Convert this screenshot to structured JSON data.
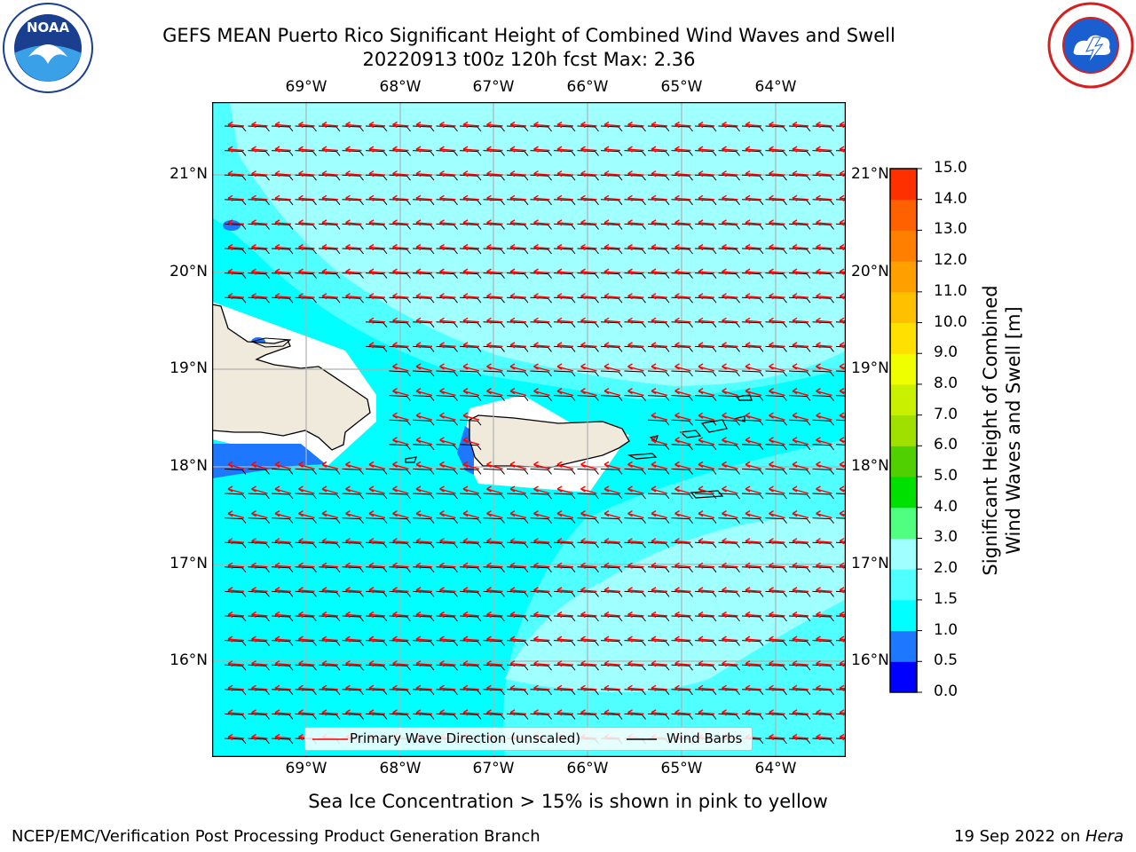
{
  "title": {
    "line1": "GEFS MEAN Puerto Rico Significant Height of Combined Wind Waves and Swell",
    "line2": "20220913 t00z 120h fcst   Max: 2.36"
  },
  "logos": {
    "left": "noaa-logo-icon",
    "right": "nws-logo-icon"
  },
  "axes": {
    "lon_labels": [
      "69°W",
      "68°W",
      "67°W",
      "66°W",
      "65°W",
      "64°W"
    ],
    "lat_labels": [
      "21°N",
      "20°N",
      "19°N",
      "18°N",
      "17°N",
      "16°N"
    ]
  },
  "legend": {
    "wave": "Primary Wave Direction (unscaled)",
    "barb": "Wind Barbs",
    "wave_color": "#ff0000",
    "barb_color": "#000000"
  },
  "colorbar": {
    "label_line1": "Significant Height of Combined",
    "label_line2": "Wind Waves and Swell [m]",
    "ticks": [
      "0.0",
      "0.5",
      "1.0",
      "1.5",
      "2.0",
      "3.0",
      "4.0",
      "5.0",
      "6.0",
      "7.0",
      "8.0",
      "9.0",
      "10.0",
      "11.0",
      "12.0",
      "13.0",
      "14.0",
      "15.0"
    ],
    "colors": [
      "#0000ff",
      "#1e78ff",
      "#00ffff",
      "#50ffff",
      "#a0ffff",
      "#50ff80",
      "#00e000",
      "#50d000",
      "#a0e000",
      "#c8f000",
      "#f0ff00",
      "#ffe000",
      "#ffc000",
      "#ffa000",
      "#ff8000",
      "#ff6000",
      "#ff3000"
    ]
  },
  "footer": {
    "ice_note": "Sea Ice Concentration > 15% is shown in pink to yellow",
    "branch": "NCEP/EMC/Verification Post Processing Product Generation Branch",
    "date_prefix": "19 Sep 2022 on ",
    "machine": "Hera"
  },
  "map_colors": {
    "land": "#efeadc",
    "sea_base": "#00ffff",
    "sea_mid": "#50ffff",
    "sea_light": "#a0ffff",
    "sea_low": "#1e78ff",
    "grid": "#b0b0b0"
  }
}
